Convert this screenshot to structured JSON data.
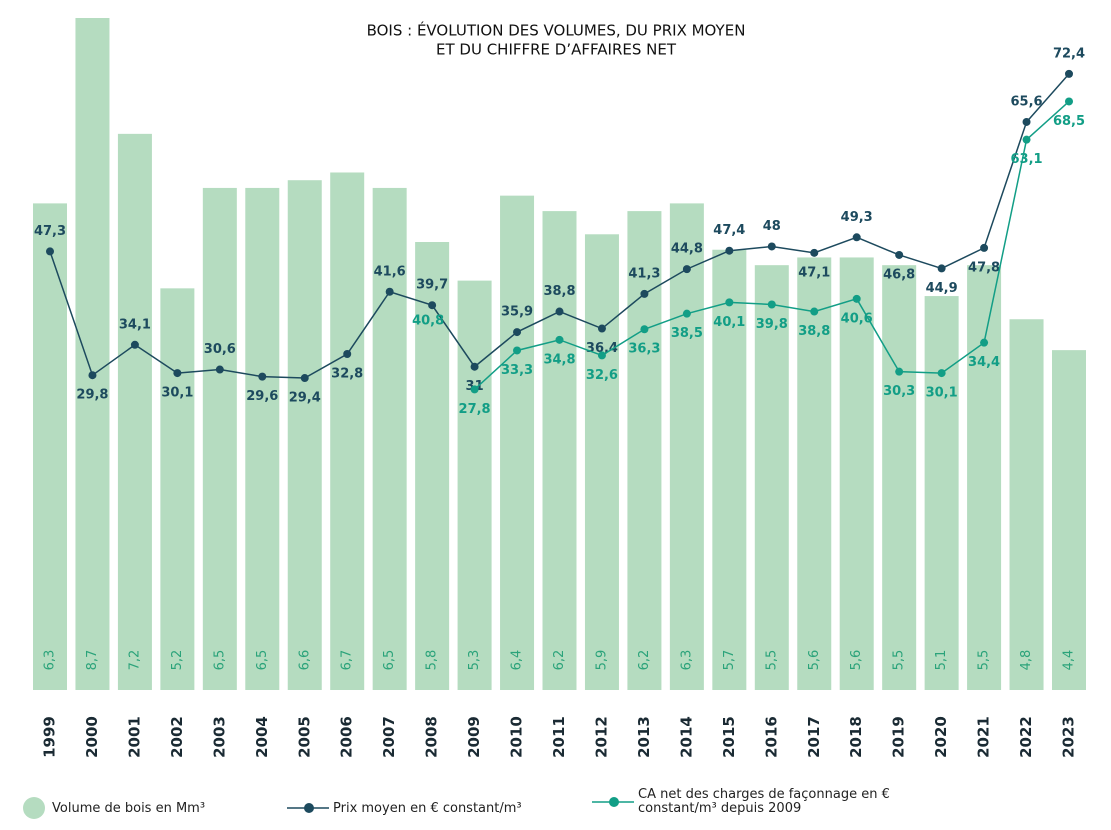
{
  "chart_data": {
    "type": "bar-line",
    "title": [
      "BOIS : ÉVOLUTION DES VOLUMES, DU PRIX MOYEN",
      "ET DU CHIFFRE D’AFFAIRES NET"
    ],
    "categories": [
      "1999",
      "2000",
      "2001",
      "2002",
      "2003",
      "2004",
      "2005",
      "2006",
      "2007",
      "2008",
      "2009",
      "2010",
      "2011",
      "2012",
      "2013",
      "2014",
      "2015",
      "2016",
      "2017",
      "2018",
      "2019",
      "2020",
      "2021",
      "2022",
      "2023"
    ],
    "ylim": [
      0,
      8.7
    ],
    "y2lim": [
      -14.7,
      80.3
    ],
    "series": [
      {
        "name": "Volume de bois en Mm³",
        "type": "bar",
        "color": "#b5dcc0",
        "label_color": "#2ba37a",
        "values": [
          6.3,
          8.7,
          7.2,
          5.2,
          6.5,
          6.5,
          6.6,
          6.7,
          6.5,
          5.8,
          5.3,
          6.4,
          6.2,
          5.9,
          6.2,
          6.3,
          5.7,
          5.5,
          5.6,
          5.6,
          5.5,
          5.1,
          5.5,
          4.8,
          4.4
        ],
        "value_labels": [
          "6,3",
          "8,7",
          "7,2",
          "5,2",
          "6,5",
          "6,5",
          "6,6",
          "6,7",
          "6,5",
          "5,8",
          "5,3",
          "6,4",
          "6,2",
          "5,9",
          "6,2",
          "6,3",
          "5,7",
          "5,5",
          "5,6",
          "5,6",
          "5,5",
          "5,1",
          "5,5",
          "4,8",
          "4,4"
        ]
      },
      {
        "name": "Prix moyen en € constant/m³",
        "type": "line",
        "axis": "y2",
        "color": "#1d4a5e",
        "values": [
          47.3,
          29.8,
          34.1,
          30.1,
          30.6,
          29.6,
          29.4,
          32.8,
          41.6,
          39.7,
          31,
          35.9,
          38.8,
          36.4,
          41.3,
          44.8,
          47.4,
          48,
          47.1,
          49.3,
          46.8,
          44.9,
          47.8,
          65.6,
          72.4
        ],
        "value_labels": [
          "47,3",
          "29,8",
          "34,1",
          "30,1",
          "30,6",
          "29,6",
          "29,4",
          "32,8",
          "41,6",
          "39,7",
          "31",
          "35,9",
          "38,8",
          "36,4",
          "41,3",
          "44,8",
          "47,4",
          "48",
          "47,1",
          "49,3",
          "46,8",
          "44,9",
          "47,8",
          "65,6",
          "72,4"
        ]
      },
      {
        "name": "CA net des charges de façonnage en € constant/m³ depuis 2009",
        "type": "line",
        "axis": "y2",
        "color": "#129e86",
        "values": [
          null,
          null,
          null,
          null,
          null,
          null,
          null,
          null,
          null,
          null,
          27.8,
          33.3,
          34.8,
          32.6,
          36.3,
          38.5,
          40.1,
          39.8,
          38.8,
          40.6,
          30.3,
          30.1,
          34.4,
          63.1,
          68.5
        ],
        "value_labels": [
          null,
          null,
          null,
          null,
          null,
          null,
          null,
          null,
          null,
          null,
          "27,8",
          "33,3",
          "34,8",
          "32,6",
          "36,3",
          "38,5",
          "40,1",
          "39,8",
          "38,8",
          "40,6",
          "30,3",
          "30,1",
          "34,4",
          "63,1",
          "68,5"
        ]
      }
    ],
    "annotations": [
      {
        "text": "40,8"
      }
    ]
  }
}
